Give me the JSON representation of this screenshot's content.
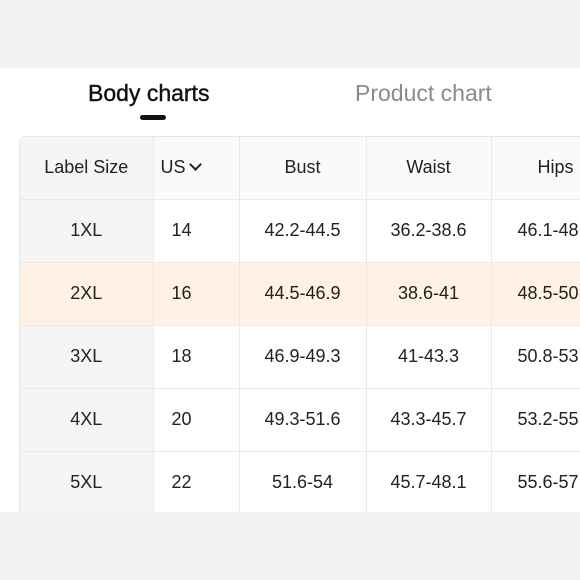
{
  "tabs": [
    {
      "label": "Body charts",
      "active": true
    },
    {
      "label": "Product chart",
      "active": false
    }
  ],
  "table": {
    "headers": [
      "Label Size",
      "US",
      "Bust",
      "Waist",
      "Hips"
    ],
    "rows": [
      {
        "label": "1XL",
        "us": "14",
        "bust": "42.2-44.5",
        "waist": "36.2-38.6",
        "hips": "46.1-48"
      },
      {
        "label": "2XL",
        "us": "16",
        "bust": "44.5-46.9",
        "waist": "38.6-41",
        "hips": "48.5-50"
      },
      {
        "label": "3XL",
        "us": "18",
        "bust": "46.9-49.3",
        "waist": "41-43.3",
        "hips": "50.8-53"
      },
      {
        "label": "4XL",
        "us": "20",
        "bust": "49.3-51.6",
        "waist": "43.3-45.7",
        "hips": "53.2-55"
      },
      {
        "label": "5XL",
        "us": "22",
        "bust": "51.6-54",
        "waist": "45.7-48.1",
        "hips": "55.6-57"
      }
    ],
    "highlight_row": 1,
    "highlight_color": "#fff1e4"
  }
}
